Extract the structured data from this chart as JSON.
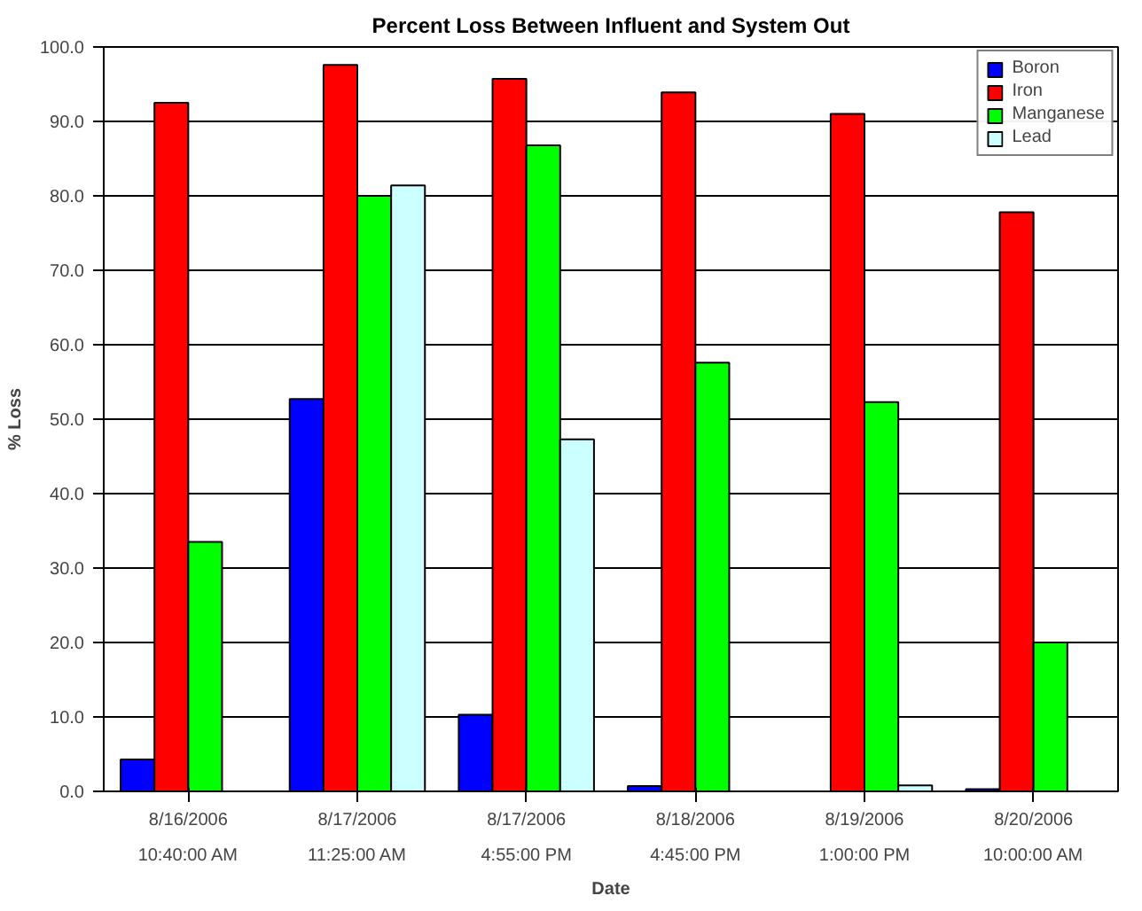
{
  "chart_data": {
    "type": "bar",
    "title": "Percent Loss Between Influent and System Out",
    "xlabel": "Date",
    "ylabel": "% Loss",
    "categories": [
      "8/16/2006\n10:40:00 AM",
      "8/17/2006\n11:25:00 AM",
      "8/17/2006\n4:55:00 PM",
      "8/18/2006\n4:45:00 PM",
      "8/19/2006\n1:00:00 PM",
      "8/20/2006\n10:00:00 AM"
    ],
    "series": [
      {
        "name": "Boron",
        "color": "#0000ff",
        "values": [
          4.3,
          52.7,
          10.3,
          0.7,
          null,
          0.3
        ]
      },
      {
        "name": "Iron",
        "color": "#ff0000",
        "values": [
          92.5,
          97.6,
          95.7,
          93.9,
          91.0,
          77.8
        ]
      },
      {
        "name": "Manganese",
        "color": "#00ff00",
        "values": [
          33.5,
          80.0,
          86.8,
          57.6,
          52.3,
          20.0
        ]
      },
      {
        "name": "Lead",
        "color": "#ccffff",
        "values": [
          null,
          81.4,
          47.3,
          null,
          0.8,
          null
        ]
      }
    ],
    "ylim": [
      0,
      100
    ],
    "yticks": [
      {
        "value": 0,
        "label": "0.0"
      },
      {
        "value": 10,
        "label": "10.0"
      },
      {
        "value": 20,
        "label": "20.0"
      },
      {
        "value": 30,
        "label": "30.0"
      },
      {
        "value": 40,
        "label": "40.0"
      },
      {
        "value": 50,
        "label": "50.0"
      },
      {
        "value": 60,
        "label": "60.0"
      },
      {
        "value": 70,
        "label": "70.0"
      },
      {
        "value": 80,
        "label": "80.0"
      },
      {
        "value": 90,
        "label": "90.0"
      },
      {
        "value": 100,
        "label": "100.0"
      }
    ],
    "grid": "y",
    "legend": "top right"
  }
}
